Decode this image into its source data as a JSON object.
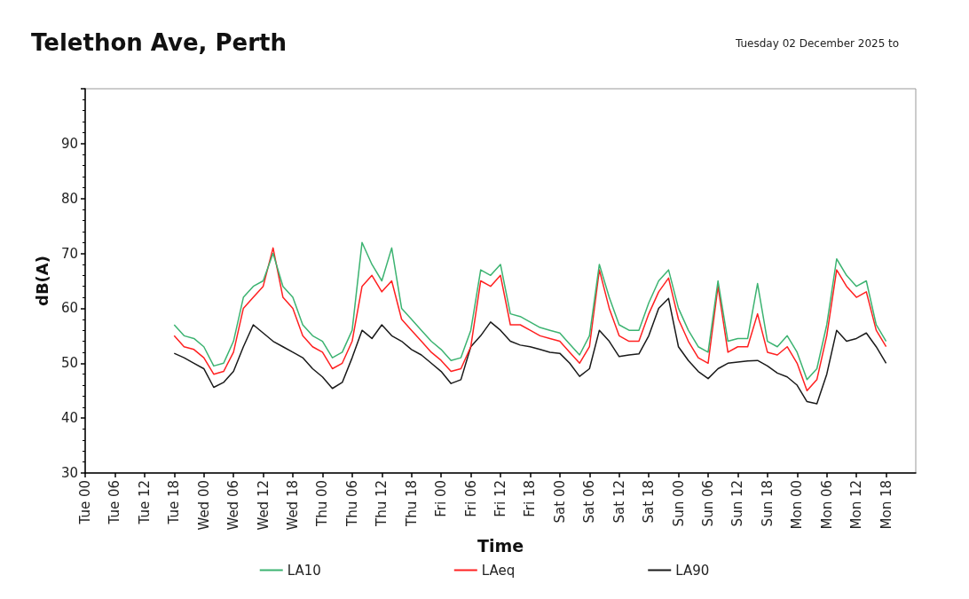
{
  "chart_data": {
    "type": "line",
    "title": "Telethon Ave, Perth",
    "subtitle": "Tuesday 02 December 2025 to",
    "xlabel": "Time",
    "ylabel": "dB(A)",
    "x": [
      "2025-12-02T18:00",
      "2025-12-02T20:00",
      "2025-12-02T22:00",
      "2025-12-03T00:00",
      "2025-12-03T02:00",
      "2025-12-03T04:00",
      "2025-12-03T06:00",
      "2025-12-03T08:00",
      "2025-12-03T10:00",
      "2025-12-03T12:00",
      "2025-12-03T14:00",
      "2025-12-03T16:00",
      "2025-12-03T18:00",
      "2025-12-03T20:00",
      "2025-12-03T22:00",
      "2025-12-04T00:00",
      "2025-12-04T02:00",
      "2025-12-04T04:00",
      "2025-12-04T06:00",
      "2025-12-04T08:00",
      "2025-12-04T10:00",
      "2025-12-04T12:00",
      "2025-12-04T14:00",
      "2025-12-04T16:00",
      "2025-12-04T18:00",
      "2025-12-04T20:00",
      "2025-12-04T22:00",
      "2025-12-05T00:00",
      "2025-12-05T02:00",
      "2025-12-05T04:00",
      "2025-12-05T06:00",
      "2025-12-05T08:00",
      "2025-12-05T10:00",
      "2025-12-05T12:00",
      "2025-12-05T14:00",
      "2025-12-05T16:00",
      "2025-12-05T18:00",
      "2025-12-05T20:00",
      "2025-12-05T22:00",
      "2025-12-06T00:00",
      "2025-12-06T02:00",
      "2025-12-06T04:00",
      "2025-12-06T06:00",
      "2025-12-06T08:00",
      "2025-12-06T10:00",
      "2025-12-06T12:00",
      "2025-12-06T14:00",
      "2025-12-06T16:00",
      "2025-12-06T18:00",
      "2025-12-06T20:00",
      "2025-12-06T22:00",
      "2025-12-07T00:00",
      "2025-12-07T02:00",
      "2025-12-07T04:00",
      "2025-12-07T06:00",
      "2025-12-07T08:00",
      "2025-12-07T10:00",
      "2025-12-07T12:00",
      "2025-12-07T14:00",
      "2025-12-07T16:00",
      "2025-12-07T18:00",
      "2025-12-07T20:00",
      "2025-12-07T22:00",
      "2025-12-08T00:00",
      "2025-12-08T02:00",
      "2025-12-08T04:00",
      "2025-12-08T06:00",
      "2025-12-08T08:00",
      "2025-12-08T10:00",
      "2025-12-08T12:00",
      "2025-12-08T14:00",
      "2025-12-08T16:00",
      "2025-12-08T18:00"
    ],
    "series": [
      {
        "name": "LA10",
        "color": "#3cb371",
        "values": [
          57,
          55,
          54.5,
          53,
          49.5,
          50,
          54,
          62,
          64,
          65,
          70,
          64,
          62,
          57,
          55,
          54,
          51,
          52,
          56,
          72,
          68,
          65,
          71,
          60,
          58,
          56,
          54,
          52.5,
          50.5,
          51,
          56,
          67,
          66,
          68,
          59,
          58.5,
          57.5,
          56.5,
          56,
          55.5,
          53.5,
          51.5,
          55,
          68,
          62,
          57,
          56,
          56,
          61,
          65,
          67,
          60,
          56,
          53,
          52,
          65,
          54,
          54.5,
          54.5,
          64.5,
          54,
          53,
          55,
          52,
          47,
          49,
          57,
          69,
          66,
          64,
          65,
          57,
          54
        ]
      },
      {
        "name": "LAeq",
        "color": "#ff2020",
        "values": [
          55,
          53,
          52.5,
          51,
          48,
          48.5,
          52,
          60,
          62,
          64,
          71,
          62,
          60,
          55,
          53,
          52,
          49,
          50,
          54,
          64,
          66,
          63,
          65,
          58,
          56,
          54,
          52,
          50.5,
          48.5,
          49,
          53,
          65,
          64,
          66,
          57,
          57,
          56,
          55,
          54.5,
          54,
          52,
          50,
          53,
          67,
          60,
          55,
          54,
          54,
          59,
          63,
          65.5,
          58,
          54,
          51,
          50,
          64,
          52,
          53,
          53,
          59,
          52,
          51.5,
          53,
          50,
          45,
          47,
          55,
          67,
          64,
          62,
          63,
          56,
          53
        ]
      },
      {
        "name": "LA90",
        "color": "#1a1a1a",
        "values": [
          51.8,
          51,
          50,
          49,
          45.6,
          46.5,
          48.5,
          53,
          57,
          55.5,
          54,
          53,
          52,
          51,
          49,
          47.5,
          45.4,
          46.5,
          51,
          56,
          54.5,
          57,
          55,
          54,
          52.5,
          51.5,
          50,
          48.5,
          46.3,
          47,
          53,
          55,
          57.5,
          56,
          54,
          53.3,
          53,
          52.5,
          52,
          51.8,
          50,
          47.6,
          49,
          56,
          54,
          51.2,
          51.5,
          51.7,
          55,
          60,
          61.8,
          53,
          50.5,
          48.5,
          47.2,
          49,
          50,
          50.2,
          50.4,
          50.5,
          49.5,
          48.2,
          47.5,
          46,
          43,
          42.6,
          48,
          56,
          54,
          54.5,
          55.5,
          53,
          50
        ]
      }
    ],
    "xlim": [
      "2025-12-02T00:00",
      "2025-12-09T00:00"
    ],
    "xticks": [
      {
        "value": "2025-12-02T00:00",
        "label": "Tue 00"
      },
      {
        "value": "2025-12-02T06:00",
        "label": "Tue 06"
      },
      {
        "value": "2025-12-02T12:00",
        "label": "Tue 12"
      },
      {
        "value": "2025-12-02T18:00",
        "label": "Tue 18"
      },
      {
        "value": "2025-12-03T00:00",
        "label": "Wed 00"
      },
      {
        "value": "2025-12-03T06:00",
        "label": "Wed 06"
      },
      {
        "value": "2025-12-03T12:00",
        "label": "Wed 12"
      },
      {
        "value": "2025-12-03T18:00",
        "label": "Wed 18"
      },
      {
        "value": "2025-12-04T00:00",
        "label": "Thu 00"
      },
      {
        "value": "2025-12-04T06:00",
        "label": "Thu 06"
      },
      {
        "value": "2025-12-04T12:00",
        "label": "Thu 12"
      },
      {
        "value": "2025-12-04T18:00",
        "label": "Thu 18"
      },
      {
        "value": "2025-12-05T00:00",
        "label": "Fri 00"
      },
      {
        "value": "2025-12-05T06:00",
        "label": "Fri 06"
      },
      {
        "value": "2025-12-05T12:00",
        "label": "Fri 12"
      },
      {
        "value": "2025-12-05T18:00",
        "label": "Fri 18"
      },
      {
        "value": "2025-12-06T00:00",
        "label": "Sat 00"
      },
      {
        "value": "2025-12-06T06:00",
        "label": "Sat 06"
      },
      {
        "value": "2025-12-06T12:00",
        "label": "Sat 12"
      },
      {
        "value": "2025-12-06T18:00",
        "label": "Sat 18"
      },
      {
        "value": "2025-12-07T00:00",
        "label": "Sun 00"
      },
      {
        "value": "2025-12-07T06:00",
        "label": "Sun 06"
      },
      {
        "value": "2025-12-07T12:00",
        "label": "Sun 12"
      },
      {
        "value": "2025-12-07T18:00",
        "label": "Sun 18"
      },
      {
        "value": "2025-12-08T00:00",
        "label": "Mon 00"
      },
      {
        "value": "2025-12-08T06:00",
        "label": "Mon 06"
      },
      {
        "value": "2025-12-08T12:00",
        "label": "Mon 12"
      },
      {
        "value": "2025-12-08T18:00",
        "label": "Mon 18"
      }
    ],
    "ylim": [
      30,
      100
    ],
    "yticks": [
      30,
      40,
      50,
      60,
      70,
      80,
      90
    ],
    "legend": "bottom",
    "marker": "none",
    "line_style": "solid"
  }
}
